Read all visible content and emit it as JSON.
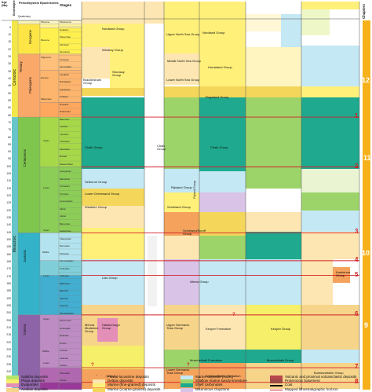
{
  "header": {
    "age_label": "Age (Ma)",
    "eon": "Eon/era/period",
    "period_system": "Period/system",
    "epoch_series": "Epoch/series",
    "stages": "Stages",
    "chapters": "Chapters"
  },
  "countries": [
    {
      "name": "United Kingdom",
      "left": "Onshore",
      "right": "North Sea"
    },
    {
      "name": "Belgium",
      "left": "",
      "right": ""
    },
    {
      "name": "The Netherlands",
      "left": "Onshore",
      "right": "North Sea"
    },
    {
      "name": "Denmark",
      "left": "",
      "right": "Onshore"
    },
    {
      "name": "Germany",
      "left": "West",
      "right": "East"
    },
    {
      "name": "Poland",
      "left": "North-west",
      "right": "South-east"
    }
  ],
  "age_ticks": [
    "5",
    "10",
    "15",
    "20",
    "25",
    "30",
    "35",
    "40",
    "45",
    "50",
    "55",
    "60",
    "65",
    "70",
    "75",
    "80",
    "85",
    "90",
    "95",
    "100",
    "105",
    "110",
    "115",
    "120",
    "125",
    "130",
    "135",
    "140",
    "145",
    "150",
    "155",
    "160",
    "165",
    "170",
    "175",
    "180",
    "185",
    "190",
    "195",
    "200",
    "205",
    "210",
    "215",
    "220",
    "225",
    "230",
    "235",
    "240",
    "245",
    "250"
  ],
  "eras": [
    "Cenozoic",
    "Mesozoic"
  ],
  "periods": [
    "Quaternary",
    "Neogene",
    "Paleogene",
    "Tertiary",
    "Cretaceous",
    "Jurassic",
    "Triassic"
  ],
  "epochs": [
    "Pliocene",
    "Miocene",
    "Oligocene",
    "Eocene",
    "Paleocene",
    "Upper",
    "Lower",
    "Upper",
    "Middle",
    "Lower",
    "Upper",
    "Middle",
    "Lower"
  ],
  "stages": [
    "Pleistocene",
    "Gelasian",
    "Piacenzian",
    "Zanclean",
    "Messinian",
    "Tortonian",
    "Serravallian",
    "Langhian",
    "Burdigalian",
    "Aquitanian",
    "Chattian",
    "Rupelian",
    "Priabonian",
    "Bartonian",
    "Lutetian",
    "Ypresian",
    "Thanetian",
    "Selandian",
    "Danian",
    "Maastrichtian",
    "Campanian",
    "Santonian",
    "Coniacian",
    "Turonian",
    "Cenomanian",
    "Albian",
    "Aptian",
    "Barremian",
    "Hauterivian",
    "Valanginian",
    "Berriasian",
    "Tithonian",
    "Kimmeridgian",
    "Oxfordian",
    "Callovian",
    "Bathonian",
    "Bajocian",
    "Aalenian",
    "Toarcian",
    "Pliensbachian",
    "Sinemurian",
    "Hettangian",
    "Rhaetian",
    "Norian",
    "Carnian",
    "Ladinian",
    "Anisian",
    "Olenekian",
    "Induan"
  ],
  "groups": [
    "Nordland Group",
    "Westray Group",
    "Upper North Sea Group",
    "Middle North Sea Group",
    "Lower North Sea Group",
    "Nordland Group",
    "Hordaland Group",
    "Rogaland Group",
    "Stronsay Group",
    "Bracklesham Group",
    "Chalk Group",
    "Chalk Group",
    "Chalk Group",
    "Selborne Group",
    "Lower Greensand Group",
    "Wealden Group",
    "Rijnland Group",
    "Schieland Group",
    "Schieland/Scruff Group",
    "Flyland Group",
    "Altena Group",
    "Lias Group",
    "Kamienna Group",
    "Mercia Mudstone Group",
    "Haisborough Group",
    "Upper Germanic Trias Group",
    "Keuper Formation",
    "Keuper Group",
    "Muschelkalk Formation",
    "Muschelkalk Group",
    "Lower Germanic Trias Group",
    "Bacton Group",
    "Buntsandstein Formation",
    "Buntsandstein Group"
  ],
  "horizons": [
    "1",
    "2",
    "3",
    "4",
    "5",
    "6",
    "7",
    "8"
  ],
  "chapters": [
    "12",
    "11",
    "10",
    "9"
  ],
  "unknown_marks": [
    "?",
    "?",
    "?"
  ],
  "legend": [
    {
      "label": "Sabkha deposits",
      "color": "#b9e36b"
    },
    {
      "label": "Playa deposits",
      "color": "#f5ef6a"
    },
    {
      "label": "Evaporites",
      "color": "#e48fb8"
    },
    {
      "label": "Aeolian deposits",
      "color": "#f6d48a"
    },
    {
      "label": "Fluvial-lacustrine deposits",
      "color": "#f4a25c"
    },
    {
      "label": "Deltaic deposits",
      "color": "#fde6b1"
    },
    {
      "label": "Marine (fine-grained) deposits",
      "color": "#fff07a"
    },
    {
      "label": "Marine (coarse-grained) deposits",
      "color": "#f3d65a"
    },
    {
      "label": "Marine deposits (marls)",
      "color": "#c4e8f4"
    },
    {
      "label": "Shallow marine sandy limestone",
      "color": "#9dd46a"
    },
    {
      "label": "Shelf carbonates",
      "color": "#1fa98e"
    },
    {
      "label": "Bituminous claystone",
      "color": "#d9c3e6"
    },
    {
      "label": "Volcanic and proximal volcaniclastic deposits",
      "color": "#b7474e"
    },
    {
      "label": "Proterozoic basement",
      "color": "#9c4a46"
    },
    {
      "label": "Coal",
      "color": "#111111"
    },
    {
      "label": "Mapped lithostratigraphic horizon",
      "color": "#d2202a"
    }
  ],
  "colors": {
    "horizon": "#d2202a",
    "chapter_bar": "#f6b11a",
    "era_cenozoic": "#f2e64b",
    "era_mesozoic": "#67c5ca"
  }
}
